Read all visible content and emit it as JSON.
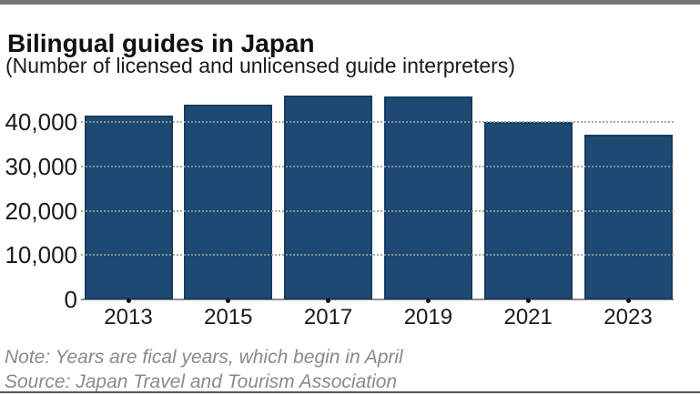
{
  "header": {
    "title": "Bilingual guides in Japan",
    "subtitle": "(Number of licensed and unlicensed guide interpreters)"
  },
  "chart_data": {
    "type": "bar",
    "title": "Bilingual guides in Japan",
    "subtitle": "(Number of licensed and unlicensed guide interpreters)",
    "categories": [
      "2013",
      "2015",
      "2017",
      "2019",
      "2021",
      "2023"
    ],
    "values": [
      41400,
      43800,
      46000,
      45700,
      40000,
      37100
    ],
    "xlabel": "",
    "ylabel": "",
    "ylim": [
      0,
      48000
    ],
    "yticks": [
      0,
      10000,
      20000,
      30000,
      40000
    ],
    "ytick_labels": [
      "0",
      "10,000",
      "20,000",
      "30,000",
      "40,000"
    ],
    "grid": "horizontal dotted, drawn over bars",
    "legend": "none",
    "bar_color": "#1d4a73"
  },
  "footer": {
    "note": "Note: Years are fical years, which begin in April",
    "source": "Source: Japan Travel and Tourism Association"
  },
  "colors": {
    "bar_fill": "#1d4a73",
    "bar_border": "#173c5f",
    "axis_line": "#8c8c8c",
    "grid_dots": "#9a9a9a",
    "note_text": "#8a8a8a",
    "top_strip": "#767676",
    "bottom_rule": "#555555"
  }
}
